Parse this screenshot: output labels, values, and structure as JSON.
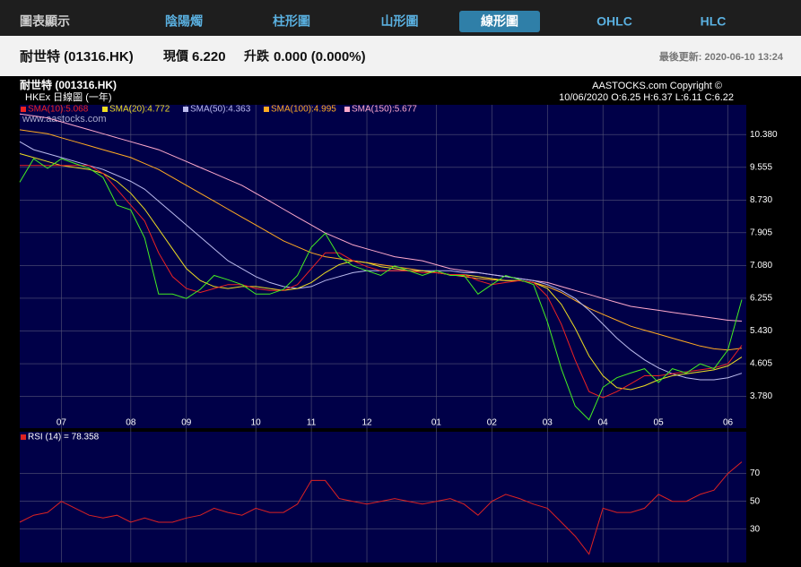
{
  "header": {
    "tabs": [
      "圖表顯示",
      "陰陽燭",
      "柱形圖",
      "山形圖",
      "線形圖",
      "OHLC",
      "HLC"
    ],
    "active": 4
  },
  "quote": {
    "name": "耐世特 (01316.HK)",
    "price_label": "現價",
    "price": "6.220",
    "change_label": "升跌",
    "change": "0.000 (0.000%)",
    "updated": "最後更新: 2020-06-10 13:24"
  },
  "chart_data": [
    {
      "type": "line",
      "title": "耐世特 (001316.HK)",
      "subtitle": "HKEx 日線圖 (一年)",
      "copyright": "AASTOCKS.com Copyright ©",
      "watermark": "www.aastocks.com",
      "info": "10/06/2020  O:6.25  H:6.37  L:6.11  C:6.22",
      "grid": true,
      "categories": [
        null,
        null,
        null,
        "07",
        null,
        null,
        null,
        null,
        "08",
        null,
        null,
        null,
        "09",
        null,
        null,
        null,
        null,
        "10",
        null,
        null,
        null,
        "11",
        null,
        null,
        null,
        "12",
        null,
        null,
        null,
        null,
        "01",
        null,
        null,
        null,
        "02",
        null,
        null,
        null,
        "03",
        null,
        null,
        null,
        "04",
        null,
        null,
        null,
        "05",
        null,
        null,
        null,
        null,
        "06",
        null
      ],
      "ylim": [
        2.98,
        11.13
      ],
      "yticks": [
        {
          "value": 10.38,
          "label": "10.380"
        },
        {
          "value": 9.555,
          "label": "9.555"
        },
        {
          "value": 8.73,
          "label": "8.730"
        },
        {
          "value": 7.905,
          "label": "7.905"
        },
        {
          "value": 7.08,
          "label": "7.080"
        },
        {
          "value": 6.255,
          "label": "6.255"
        },
        {
          "value": 5.43,
          "label": "5.430"
        },
        {
          "value": 4.605,
          "label": "4.605"
        },
        {
          "value": 3.78,
          "label": "3.780"
        }
      ],
      "series": [
        {
          "color": "#44ee22",
          "values": [
            9.18,
            9.77,
            9.53,
            9.77,
            9.65,
            9.53,
            9.3,
            8.6,
            8.48,
            7.77,
            6.36,
            6.36,
            6.25,
            6.48,
            6.83,
            6.72,
            6.6,
            6.36,
            6.36,
            6.48,
            6.83,
            7.54,
            7.89,
            7.3,
            7.07,
            6.95,
            6.83,
            7.07,
            6.95,
            6.83,
            6.95,
            6.83,
            6.83,
            6.36,
            6.6,
            6.83,
            6.72,
            6.6,
            5.66,
            4.48,
            3.54,
            3.19,
            4.01,
            4.25,
            4.37,
            4.48,
            4.13,
            4.48,
            4.37,
            4.6,
            4.48,
            4.95,
            6.22
          ]
        },
        {
          "name": "SMA(10):5.068",
          "color": "#ee2222",
          "values": [
            9.6,
            9.6,
            9.6,
            9.6,
            9.6,
            9.6,
            9.4,
            9.0,
            8.6,
            8.2,
            7.4,
            6.8,
            6.5,
            6.4,
            6.5,
            6.6,
            6.6,
            6.5,
            6.45,
            6.45,
            6.6,
            7.0,
            7.4,
            7.4,
            7.2,
            7.05,
            6.95,
            6.95,
            6.95,
            6.9,
            6.9,
            6.85,
            6.85,
            6.7,
            6.6,
            6.65,
            6.7,
            6.65,
            6.3,
            5.6,
            4.7,
            3.9,
            3.75,
            3.9,
            4.1,
            4.3,
            4.3,
            4.35,
            4.4,
            4.45,
            4.5,
            4.6,
            5.068
          ]
        },
        {
          "name": "SMA(20):4.772",
          "color": "#eedd22",
          "values": [
            9.9,
            9.8,
            9.7,
            9.6,
            9.55,
            9.5,
            9.4,
            9.2,
            8.9,
            8.5,
            8.0,
            7.5,
            7.0,
            6.7,
            6.55,
            6.5,
            6.55,
            6.55,
            6.5,
            6.45,
            6.5,
            6.65,
            6.9,
            7.1,
            7.2,
            7.15,
            7.05,
            7.0,
            6.95,
            6.95,
            6.9,
            6.85,
            6.85,
            6.8,
            6.75,
            6.7,
            6.7,
            6.65,
            6.5,
            6.1,
            5.5,
            4.8,
            4.3,
            4.0,
            3.95,
            4.05,
            4.2,
            4.3,
            4.35,
            4.4,
            4.45,
            4.55,
            4.772
          ]
        },
        {
          "name": "SMA(50):4.363",
          "color": "#bbbbee",
          "values": [
            10.2,
            10.0,
            9.9,
            9.8,
            9.7,
            9.6,
            9.5,
            9.35,
            9.2,
            9.0,
            8.7,
            8.4,
            8.1,
            7.8,
            7.5,
            7.2,
            7.0,
            6.8,
            6.65,
            6.55,
            6.5,
            6.55,
            6.7,
            6.8,
            6.9,
            6.95,
            6.95,
            6.95,
            6.95,
            6.95,
            6.95,
            6.95,
            6.9,
            6.9,
            6.85,
            6.8,
            6.75,
            6.7,
            6.6,
            6.45,
            6.25,
            5.95,
            5.6,
            5.25,
            4.95,
            4.7,
            4.5,
            4.35,
            4.25,
            4.2,
            4.2,
            4.25,
            4.363
          ]
        },
        {
          "name": "SMA(100):4.995",
          "color": "#ffaa22",
          "values": [
            10.5,
            10.45,
            10.4,
            10.3,
            10.2,
            10.1,
            10.0,
            9.9,
            9.8,
            9.65,
            9.5,
            9.3,
            9.1,
            8.9,
            8.7,
            8.5,
            8.3,
            8.1,
            7.9,
            7.7,
            7.55,
            7.4,
            7.3,
            7.25,
            7.2,
            7.15,
            7.1,
            7.05,
            7.0,
            6.95,
            6.9,
            6.85,
            6.8,
            6.75,
            6.72,
            6.7,
            6.7,
            6.65,
            6.55,
            6.4,
            6.2,
            6.0,
            5.85,
            5.7,
            5.55,
            5.45,
            5.35,
            5.25,
            5.15,
            5.05,
            4.98,
            4.95,
            4.995
          ]
        },
        {
          "name": "SMA(150):5.677",
          "color": "#ffaacc",
          "values": [
            10.9,
            10.85,
            10.8,
            10.7,
            10.6,
            10.5,
            10.4,
            10.3,
            10.2,
            10.1,
            10.0,
            9.85,
            9.7,
            9.55,
            9.4,
            9.25,
            9.1,
            8.9,
            8.7,
            8.5,
            8.3,
            8.1,
            7.9,
            7.75,
            7.6,
            7.5,
            7.4,
            7.3,
            7.25,
            7.2,
            7.1,
            7.0,
            6.95,
            6.9,
            6.85,
            6.8,
            6.75,
            6.7,
            6.65,
            6.55,
            6.45,
            6.35,
            6.25,
            6.15,
            6.05,
            6.0,
            5.95,
            5.9,
            5.85,
            5.8,
            5.75,
            5.7,
            5.677
          ]
        }
      ]
    },
    {
      "type": "line",
      "grid": true,
      "ylim": [
        6,
        100
      ],
      "yticks": [
        30,
        50,
        70
      ],
      "series": [
        {
          "name": "RSI (14) = 78.358",
          "color": "#dd2222",
          "values": [
            35,
            40,
            42,
            50,
            45,
            40,
            38,
            40,
            35,
            38,
            35,
            35,
            38,
            40,
            45,
            42,
            40,
            45,
            42,
            42,
            48,
            65,
            65,
            52,
            50,
            48,
            50,
            52,
            50,
            48,
            50,
            52,
            48,
            40,
            50,
            55,
            52,
            48,
            45,
            35,
            25,
            12,
            45,
            42,
            42,
            45,
            55,
            50,
            50,
            55,
            58,
            70,
            78.358
          ]
        }
      ]
    }
  ]
}
